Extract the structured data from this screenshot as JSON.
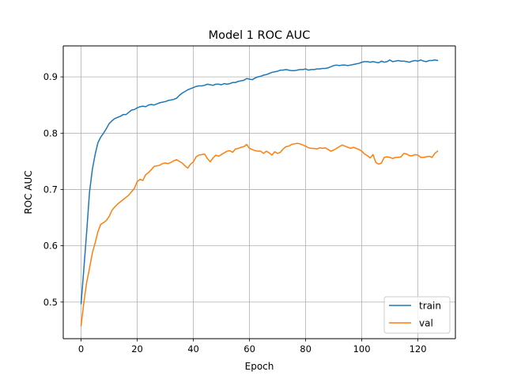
{
  "chart_data": {
    "type": "line",
    "title": "Model 1 ROC AUC",
    "xlabel": "Epoch",
    "ylabel": "ROC AUC",
    "xlim": [
      -6.35,
      133.35
    ],
    "ylim": [
      0.435,
      0.955
    ],
    "xticks": [
      0,
      20,
      40,
      60,
      80,
      100,
      120
    ],
    "yticks": [
      0.5,
      0.6,
      0.7,
      0.8,
      0.9
    ],
    "ytick_labels": [
      "0.5",
      "0.6",
      "0.7",
      "0.8",
      "0.9"
    ],
    "grid": true,
    "legend_position": "lower-right",
    "series": [
      {
        "name": "train",
        "color": "#1f77b4",
        "x": [
          0,
          1,
          2,
          3,
          4,
          5,
          6,
          7,
          8,
          9,
          10,
          11,
          12,
          13,
          14,
          15,
          16,
          17,
          18,
          19,
          20,
          21,
          22,
          23,
          24,
          25,
          26,
          27,
          28,
          29,
          30,
          31,
          32,
          33,
          34,
          35,
          36,
          37,
          38,
          39,
          40,
          41,
          42,
          43,
          44,
          45,
          46,
          47,
          48,
          49,
          50,
          51,
          52,
          53,
          54,
          55,
          56,
          57,
          58,
          59,
          60,
          61,
          62,
          63,
          64,
          65,
          66,
          67,
          68,
          69,
          70,
          71,
          72,
          73,
          74,
          75,
          76,
          77,
          78,
          79,
          80,
          81,
          82,
          83,
          84,
          85,
          86,
          87,
          88,
          89,
          90,
          91,
          92,
          93,
          94,
          95,
          96,
          97,
          98,
          99,
          100,
          101,
          102,
          103,
          104,
          105,
          106,
          107,
          108,
          109,
          110,
          111,
          112,
          113,
          114,
          115,
          116,
          117,
          118,
          119,
          120,
          121,
          122,
          123,
          124,
          125,
          126,
          127
        ],
        "y": [
          0.497,
          0.56,
          0.625,
          0.695,
          0.735,
          0.762,
          0.783,
          0.793,
          0.8,
          0.808,
          0.817,
          0.822,
          0.826,
          0.828,
          0.83,
          0.833,
          0.833,
          0.837,
          0.841,
          0.842,
          0.845,
          0.847,
          0.848,
          0.847,
          0.85,
          0.851,
          0.85,
          0.852,
          0.854,
          0.855,
          0.856,
          0.858,
          0.859,
          0.86,
          0.862,
          0.867,
          0.871,
          0.874,
          0.877,
          0.879,
          0.881,
          0.883,
          0.884,
          0.884,
          0.885,
          0.887,
          0.886,
          0.885,
          0.887,
          0.887,
          0.886,
          0.888,
          0.887,
          0.888,
          0.89,
          0.89,
          0.892,
          0.893,
          0.894,
          0.897,
          0.896,
          0.895,
          0.898,
          0.9,
          0.901,
          0.903,
          0.904,
          0.906,
          0.908,
          0.909,
          0.91,
          0.912,
          0.912,
          0.913,
          0.912,
          0.911,
          0.911,
          0.912,
          0.913,
          0.913,
          0.914,
          0.912,
          0.913,
          0.913,
          0.914,
          0.914,
          0.915,
          0.915,
          0.916,
          0.918,
          0.92,
          0.921,
          0.92,
          0.921,
          0.921,
          0.92,
          0.921,
          0.922,
          0.923,
          0.924,
          0.926,
          0.927,
          0.927,
          0.926,
          0.927,
          0.926,
          0.925,
          0.928,
          0.926,
          0.927,
          0.93,
          0.927,
          0.928,
          0.929,
          0.928,
          0.928,
          0.927,
          0.926,
          0.928,
          0.929,
          0.928,
          0.93,
          0.928,
          0.927,
          0.929,
          0.929,
          0.93,
          0.929
        ]
      },
      {
        "name": "val",
        "color": "#ff7f0e",
        "x": [
          0,
          1,
          2,
          3,
          4,
          5,
          6,
          7,
          8,
          9,
          10,
          11,
          12,
          13,
          14,
          15,
          16,
          17,
          18,
          19,
          20,
          21,
          22,
          23,
          24,
          25,
          26,
          27,
          28,
          29,
          30,
          31,
          32,
          33,
          34,
          35,
          36,
          37,
          38,
          39,
          40,
          41,
          42,
          43,
          44,
          45,
          46,
          47,
          48,
          49,
          50,
          51,
          52,
          53,
          54,
          55,
          56,
          57,
          58,
          59,
          60,
          61,
          62,
          63,
          64,
          65,
          66,
          67,
          68,
          69,
          70,
          71,
          72,
          73,
          74,
          75,
          76,
          77,
          78,
          79,
          80,
          81,
          82,
          83,
          84,
          85,
          86,
          87,
          88,
          89,
          90,
          91,
          92,
          93,
          94,
          95,
          96,
          97,
          98,
          99,
          100,
          101,
          102,
          103,
          104,
          105,
          106,
          107,
          108,
          109,
          110,
          111,
          112,
          113,
          114,
          115,
          116,
          117,
          118,
          119,
          120,
          121,
          122,
          123,
          124,
          125,
          126,
          127
        ],
        "y": [
          0.458,
          0.5,
          0.535,
          0.56,
          0.587,
          0.605,
          0.625,
          0.638,
          0.641,
          0.645,
          0.652,
          0.663,
          0.669,
          0.674,
          0.678,
          0.682,
          0.686,
          0.69,
          0.696,
          0.702,
          0.714,
          0.718,
          0.716,
          0.726,
          0.73,
          0.735,
          0.741,
          0.742,
          0.743,
          0.746,
          0.747,
          0.746,
          0.748,
          0.751,
          0.753,
          0.75,
          0.747,
          0.742,
          0.738,
          0.745,
          0.749,
          0.758,
          0.761,
          0.762,
          0.763,
          0.755,
          0.749,
          0.756,
          0.761,
          0.759,
          0.762,
          0.765,
          0.768,
          0.769,
          0.766,
          0.772,
          0.773,
          0.775,
          0.776,
          0.78,
          0.773,
          0.771,
          0.769,
          0.768,
          0.768,
          0.764,
          0.768,
          0.765,
          0.761,
          0.767,
          0.764,
          0.766,
          0.772,
          0.776,
          0.777,
          0.78,
          0.781,
          0.782,
          0.781,
          0.779,
          0.777,
          0.774,
          0.773,
          0.773,
          0.772,
          0.774,
          0.773,
          0.774,
          0.771,
          0.768,
          0.77,
          0.773,
          0.776,
          0.779,
          0.777,
          0.775,
          0.773,
          0.775,
          0.773,
          0.771,
          0.768,
          0.763,
          0.76,
          0.756,
          0.762,
          0.748,
          0.745,
          0.747,
          0.757,
          0.758,
          0.757,
          0.755,
          0.757,
          0.757,
          0.758,
          0.764,
          0.763,
          0.76,
          0.76,
          0.762,
          0.761,
          0.757,
          0.757,
          0.758,
          0.759,
          0.757,
          0.764,
          0.768
        ]
      }
    ]
  }
}
